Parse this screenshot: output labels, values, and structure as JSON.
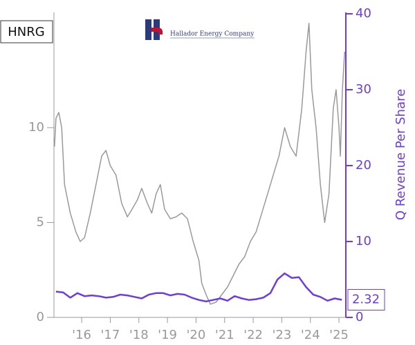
{
  "chart_data": {
    "type": "line",
    "ticker": "HNRG",
    "logo_text": "Hallador Energy Company",
    "y2_label": "Q Revenue Per Share",
    "xlim": [
      2015.03,
      2025.24
    ],
    "xticks": [
      {
        "value": 2016,
        "label": "'16"
      },
      {
        "value": 2017,
        "label": "'17"
      },
      {
        "value": 2018,
        "label": "'18"
      },
      {
        "value": 2019,
        "label": "'19"
      },
      {
        "value": 2020,
        "label": "'20"
      },
      {
        "value": 2021,
        "label": "'21"
      },
      {
        "value": 2022,
        "label": "'22"
      },
      {
        "value": 2023,
        "label": "'23"
      },
      {
        "value": 2024,
        "label": "'24"
      },
      {
        "value": 2025,
        "label": "'25"
      }
    ],
    "ylim": [
      0,
      16
    ],
    "yticks": [
      0,
      5,
      10
    ],
    "y2lim": [
      0,
      40
    ],
    "y2ticks": [
      0,
      10,
      20,
      30,
      40
    ],
    "series": [
      {
        "color": "#999999",
        "x": [
          2015.05,
          2015.1,
          2015.2,
          2015.3,
          2015.4,
          2015.6,
          2015.8,
          2015.95,
          2016.1,
          2016.3,
          2016.5,
          2016.7,
          2016.85,
          2017.0,
          2017.2,
          2017.4,
          2017.6,
          2017.8,
          2017.95,
          2018.1,
          2018.3,
          2018.45,
          2018.6,
          2018.75,
          2018.9,
          2019.1,
          2019.3,
          2019.5,
          2019.7,
          2019.9,
          2020.1,
          2020.2,
          2020.35,
          2020.5,
          2020.7,
          2020.9,
          2021.1,
          2021.3,
          2021.5,
          2021.7,
          2021.9,
          2022.1,
          2022.3,
          2022.5,
          2022.7,
          2022.9,
          2023.1,
          2023.3,
          2023.5,
          2023.7,
          2023.85,
          2023.95,
          2024.05,
          2024.2,
          2024.35,
          2024.5,
          2024.65,
          2024.8,
          2024.9,
          2025.0,
          2025.05,
          2025.12,
          2025.2
        ],
        "values": [
          9,
          10.5,
          10.8,
          10,
          7,
          5.5,
          4.5,
          4,
          4.2,
          5.5,
          7,
          8.5,
          8.8,
          8,
          7.5,
          6,
          5.3,
          5.8,
          6.2,
          6.8,
          6,
          5.5,
          6.5,
          7,
          5.7,
          5.2,
          5.3,
          5.5,
          5.2,
          4,
          3,
          1.8,
          1.2,
          0.7,
          0.8,
          1.2,
          1.6,
          2.2,
          2.8,
          3.2,
          4,
          4.5,
          5.5,
          6.5,
          7.5,
          8.5,
          10,
          9,
          8.5,
          11,
          14,
          15.5,
          12,
          10,
          7,
          5,
          6.5,
          11,
          12,
          10,
          8.5,
          12,
          14
        ]
      },
      {
        "color": "#6b3ce6",
        "axis": "y2",
        "x": [
          2015.1,
          2015.35,
          2015.6,
          2015.85,
          2016.1,
          2016.35,
          2016.6,
          2016.85,
          2017.1,
          2017.35,
          2017.6,
          2017.85,
          2018.1,
          2018.35,
          2018.6,
          2018.85,
          2019.1,
          2019.35,
          2019.6,
          2019.85,
          2020.1,
          2020.35,
          2020.6,
          2020.85,
          2021.1,
          2021.35,
          2021.6,
          2021.85,
          2022.1,
          2022.35,
          2022.6,
          2022.85,
          2023.1,
          2023.35,
          2023.6,
          2023.85,
          2024.1,
          2024.35,
          2024.6,
          2024.85,
          2025.1
        ],
        "values": [
          3.4,
          3.3,
          2.6,
          3.2,
          2.8,
          2.9,
          2.8,
          2.6,
          2.7,
          3.0,
          2.9,
          2.7,
          2.5,
          3.0,
          3.2,
          3.2,
          2.9,
          3.1,
          3.0,
          2.6,
          2.3,
          2.1,
          2.3,
          2.5,
          2.2,
          2.8,
          2.5,
          2.3,
          2.4,
          2.6,
          3.2,
          5.0,
          5.8,
          5.2,
          5.3,
          4.0,
          3.0,
          2.7,
          2.2,
          2.5,
          2.32
        ]
      }
    ]
  }
}
